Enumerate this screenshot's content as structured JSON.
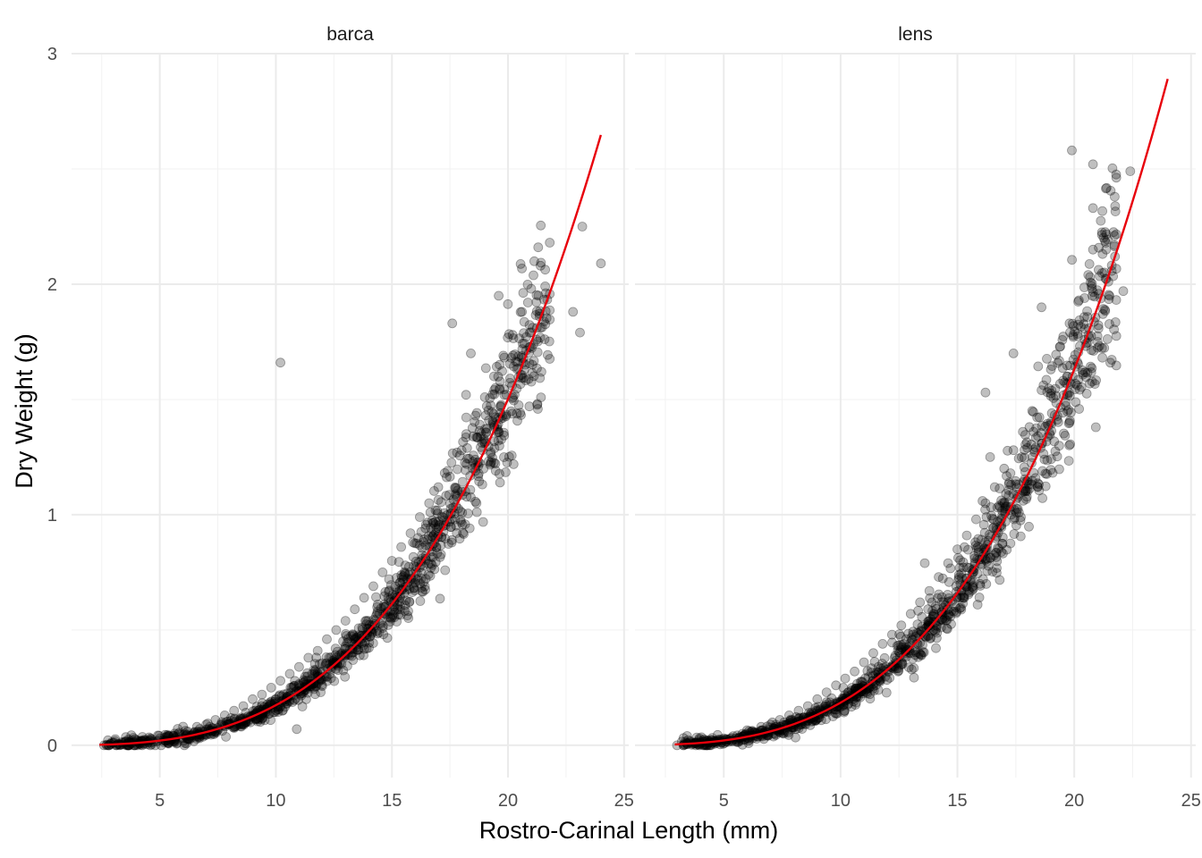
{
  "chart_data": {
    "type": "scatter",
    "xlabel": "Rostro-Carinal Length (mm)",
    "ylabel": "Dry Weight (g)",
    "xlim": [
      1.2,
      25.2
    ],
    "ylim": [
      -0.14,
      3.0
    ],
    "x_ticks": [
      5,
      10,
      15,
      20,
      25
    ],
    "y_ticks": [
      0,
      1,
      2,
      3
    ],
    "grid": true,
    "point_color": "#000000",
    "point_alpha": 0.25,
    "fit_color": "#e8000b",
    "panels": [
      {
        "name": "barca",
        "fit": {
          "a": 0.000135,
          "b": 3.11,
          "x_range": [
            2.4,
            24.0
          ]
        },
        "outliers": [
          [
            10.2,
            1.66
          ],
          [
            23.2,
            2.25
          ],
          [
            24.0,
            2.09
          ],
          [
            23.1,
            1.79
          ],
          [
            17.6,
            1.83
          ],
          [
            10.9,
            0.07
          ],
          [
            21.3,
            2.16
          ],
          [
            22.8,
            1.88
          ]
        ],
        "points": [
          [
            2.6,
            0.0
          ],
          [
            3.0,
            0.01
          ],
          [
            3.4,
            0.01
          ],
          [
            3.8,
            0.01
          ],
          [
            4.2,
            0.02
          ],
          [
            4.6,
            0.03
          ],
          [
            5.0,
            0.03
          ],
          [
            5.4,
            0.04
          ],
          [
            5.8,
            0.05
          ],
          [
            6.2,
            0.06
          ],
          [
            6.6,
            0.08
          ],
          [
            7.0,
            0.09
          ],
          [
            7.4,
            0.11
          ],
          [
            7.8,
            0.13
          ],
          [
            8.2,
            0.15
          ],
          [
            8.6,
            0.17
          ],
          [
            9.0,
            0.2
          ],
          [
            9.4,
            0.22
          ],
          [
            9.8,
            0.25
          ],
          [
            10.2,
            0.28
          ],
          [
            10.6,
            0.31
          ],
          [
            11.0,
            0.34
          ],
          [
            11.4,
            0.38
          ],
          [
            11.8,
            0.41
          ],
          [
            12.2,
            0.46
          ],
          [
            12.6,
            0.5
          ],
          [
            13.0,
            0.54
          ],
          [
            13.4,
            0.59
          ],
          [
            13.8,
            0.64
          ],
          [
            14.2,
            0.69
          ],
          [
            14.6,
            0.75
          ],
          [
            15.0,
            0.8
          ],
          [
            15.4,
            0.86
          ],
          [
            15.8,
            0.92
          ],
          [
            16.2,
            0.99
          ],
          [
            16.6,
            1.05
          ],
          [
            17.0,
            1.12
          ],
          [
            17.4,
            1.19
          ],
          [
            17.8,
            1.27
          ],
          [
            18.2,
            1.35
          ],
          [
            18.6,
            1.43
          ],
          [
            19.0,
            1.51
          ],
          [
            19.4,
            1.6
          ],
          [
            19.8,
            1.69
          ],
          [
            20.2,
            1.78
          ],
          [
            20.6,
            1.88
          ],
          [
            21.0,
            1.98
          ],
          [
            21.4,
            2.08
          ],
          [
            19.6,
            1.95
          ],
          [
            18.4,
            1.7
          ]
        ]
      },
      {
        "name": "lens",
        "fit": {
          "a": 0.000134,
          "b": 3.14,
          "x_range": [
            2.9,
            24.0
          ]
        },
        "outliers": [
          [
            19.9,
            2.58
          ],
          [
            20.8,
            2.52
          ],
          [
            22.4,
            2.49
          ],
          [
            20.8,
            2.33
          ],
          [
            22.1,
            1.97
          ],
          [
            16.2,
            1.53
          ],
          [
            20.8,
            2.15
          ],
          [
            13.6,
            0.79
          ]
        ],
        "points": [
          [
            3.0,
            0.0
          ],
          [
            3.4,
            0.01
          ],
          [
            3.8,
            0.01
          ],
          [
            4.2,
            0.02
          ],
          [
            4.6,
            0.02
          ],
          [
            5.0,
            0.03
          ],
          [
            5.4,
            0.04
          ],
          [
            5.8,
            0.05
          ],
          [
            6.2,
            0.06
          ],
          [
            6.6,
            0.08
          ],
          [
            7.0,
            0.09
          ],
          [
            7.4,
            0.11
          ],
          [
            7.8,
            0.13
          ],
          [
            8.2,
            0.15
          ],
          [
            8.6,
            0.17
          ],
          [
            9.0,
            0.2
          ],
          [
            9.4,
            0.23
          ],
          [
            9.8,
            0.26
          ],
          [
            10.2,
            0.29
          ],
          [
            10.6,
            0.32
          ],
          [
            11.0,
            0.36
          ],
          [
            11.4,
            0.4
          ],
          [
            11.8,
            0.44
          ],
          [
            12.2,
            0.48
          ],
          [
            12.6,
            0.52
          ],
          [
            13.0,
            0.57
          ],
          [
            13.4,
            0.62
          ],
          [
            13.8,
            0.67
          ],
          [
            14.2,
            0.73
          ],
          [
            14.6,
            0.79
          ],
          [
            15.0,
            0.85
          ],
          [
            15.4,
            0.91
          ],
          [
            15.8,
            0.98
          ],
          [
            16.2,
            1.05
          ],
          [
            16.6,
            1.12
          ],
          [
            17.0,
            1.2
          ],
          [
            17.4,
            1.28
          ],
          [
            17.8,
            1.36
          ],
          [
            18.2,
            1.45
          ],
          [
            18.6,
            1.54
          ],
          [
            19.0,
            1.63
          ],
          [
            19.4,
            1.73
          ],
          [
            19.8,
            1.83
          ],
          [
            20.2,
            1.93
          ],
          [
            20.6,
            2.04
          ],
          [
            21.0,
            1.75
          ],
          [
            18.6,
            1.9
          ],
          [
            17.4,
            1.7
          ],
          [
            19.8,
            1.4
          ],
          [
            16.4,
            1.25
          ]
        ]
      }
    ]
  }
}
